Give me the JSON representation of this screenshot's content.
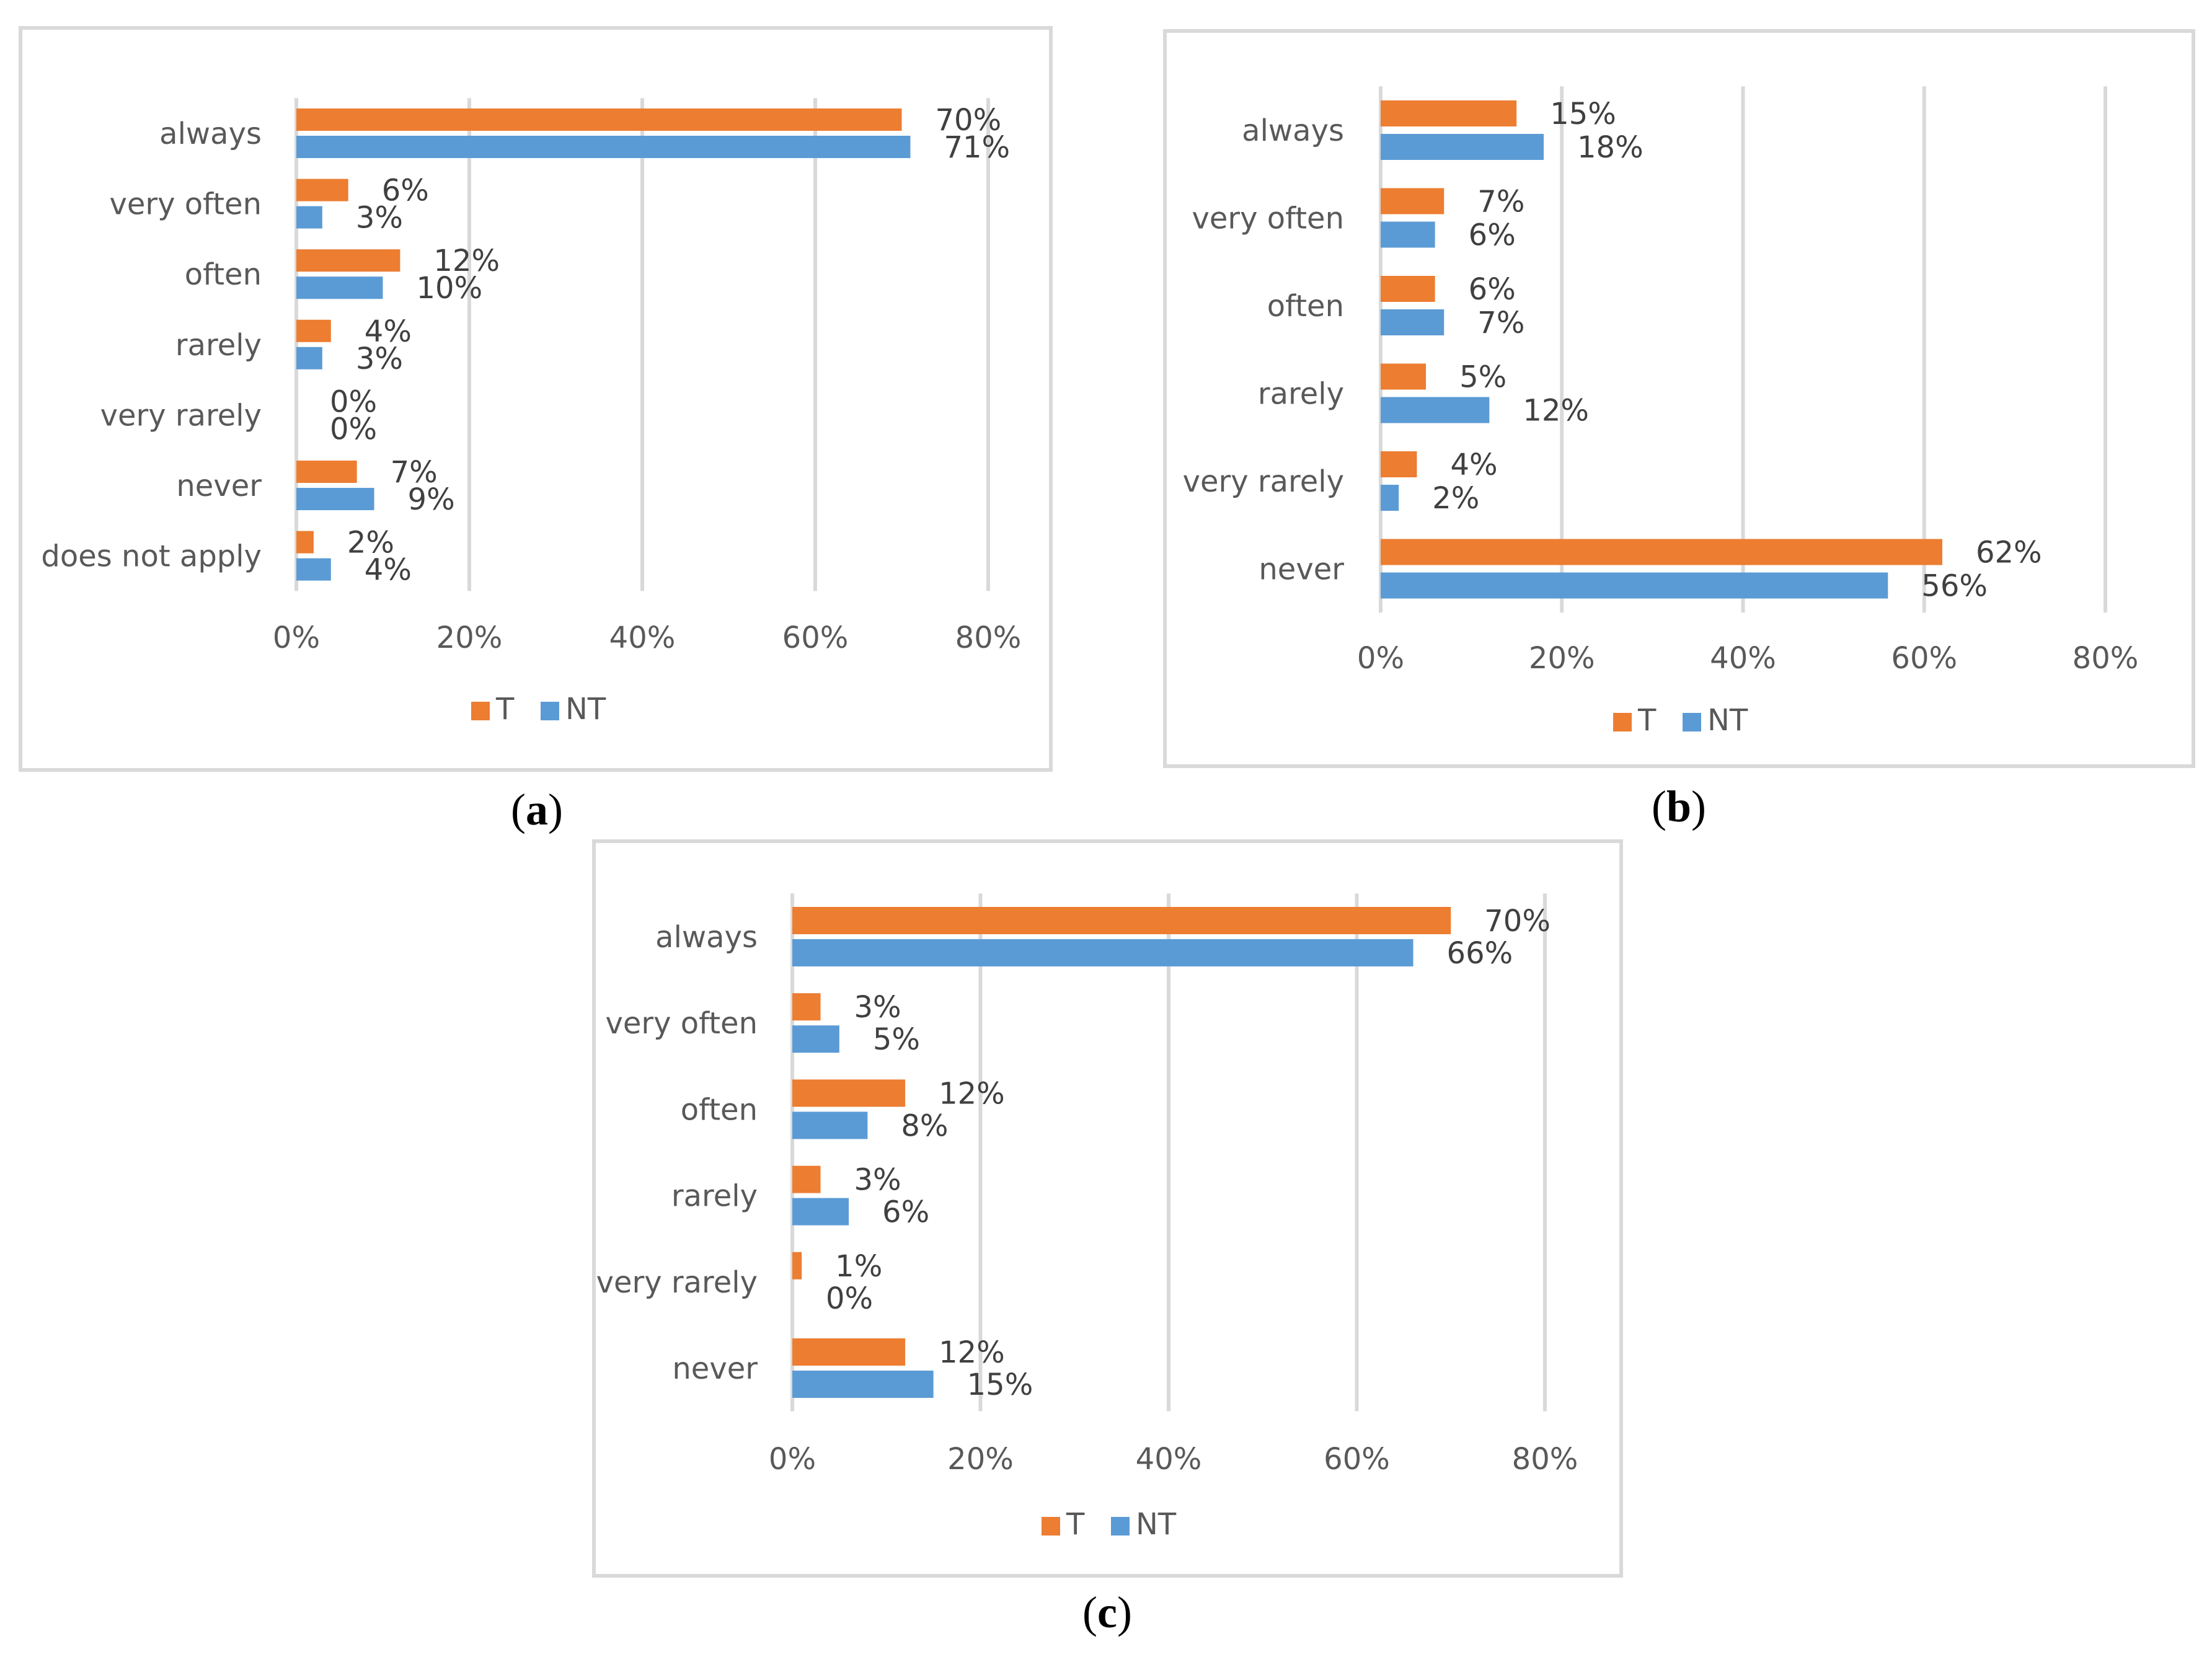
{
  "chart_data": [
    {
      "panel": "a",
      "type": "bar",
      "orientation": "horizontal",
      "categories": [
        "always",
        "very often",
        "often",
        "rarely",
        "very rarely",
        "never",
        "does not apply"
      ],
      "series": [
        {
          "name": "T",
          "color": "#ed7d31",
          "values": [
            70,
            6,
            12,
            4,
            0,
            7,
            2
          ],
          "labels": [
            "70%",
            "6%",
            "12%",
            "4%",
            "0%",
            "7%",
            "2%"
          ]
        },
        {
          "name": "NT",
          "color": "#5b9bd5",
          "values": [
            71,
            3,
            10,
            3,
            0,
            9,
            4
          ],
          "labels": [
            "71%",
            "3%",
            "10%",
            "3%",
            "0%",
            "9%",
            "4%"
          ]
        }
      ],
      "xlim": [
        0,
        80
      ],
      "xticks": [
        "0%",
        "20%",
        "40%",
        "60%",
        "80%"
      ],
      "grid": true,
      "legend": "bottom"
    },
    {
      "panel": "b",
      "type": "bar",
      "orientation": "horizontal",
      "categories": [
        "always",
        "very often",
        "often",
        "rarely",
        "very rarely",
        "never"
      ],
      "series": [
        {
          "name": "T",
          "color": "#ed7d31",
          "values": [
            15,
            7,
            6,
            5,
            4,
            62
          ],
          "labels": [
            "15%",
            "7%",
            "6%",
            "5%",
            "4%",
            "62%"
          ]
        },
        {
          "name": "NT",
          "color": "#5b9bd5",
          "values": [
            18,
            6,
            7,
            12,
            2,
            56
          ],
          "labels": [
            "18%",
            "6%",
            "7%",
            "12%",
            "2%",
            "56%"
          ]
        }
      ],
      "xlim": [
        0,
        80
      ],
      "xticks": [
        "0%",
        "20%",
        "40%",
        "60%",
        "80%"
      ],
      "grid": true,
      "legend": "bottom"
    },
    {
      "panel": "c",
      "type": "bar",
      "orientation": "horizontal",
      "categories": [
        "always",
        "very often",
        "often",
        "rarely",
        "very rarely",
        "never"
      ],
      "series": [
        {
          "name": "T",
          "color": "#ed7d31",
          "values": [
            70,
            3,
            12,
            3,
            1,
            12
          ],
          "labels": [
            "70%",
            "3%",
            "12%",
            "3%",
            "1%",
            "12%"
          ]
        },
        {
          "name": "NT",
          "color": "#5b9bd5",
          "values": [
            66,
            5,
            8,
            6,
            0,
            15
          ],
          "labels": [
            "66%",
            "5%",
            "8%",
            "6%",
            "0%",
            "15%"
          ]
        }
      ],
      "xlim": [
        0,
        80
      ],
      "xticks": [
        "0%",
        "20%",
        "40%",
        "60%",
        "80%"
      ],
      "grid": true,
      "legend": "bottom"
    }
  ],
  "panel_labels": [
    "a",
    "b",
    "c"
  ]
}
